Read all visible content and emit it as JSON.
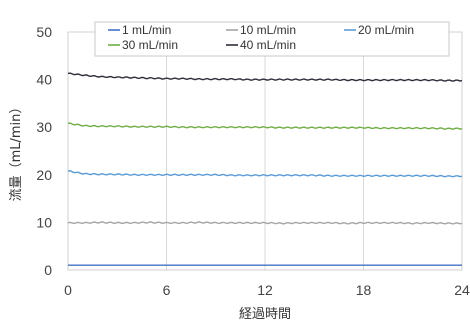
{
  "chart_data": {
    "type": "line",
    "xlabel": "経過時間",
    "ylabel": "流量（mL/min）",
    "xlim": [
      0,
      24
    ],
    "ylim": [
      0,
      50
    ],
    "x_ticks": [
      0,
      6,
      12,
      18,
      24
    ],
    "y_ticks": [
      0,
      10,
      20,
      30,
      40,
      50
    ],
    "grid": "vertical",
    "legend_position": "top",
    "x": [
      0,
      1,
      2,
      3,
      4,
      5,
      6,
      7,
      8,
      9,
      10,
      11,
      12,
      13,
      14,
      15,
      16,
      17,
      18,
      19,
      20,
      21,
      22,
      23,
      24
    ],
    "series": [
      {
        "name": "1 mL/min",
        "color": "#4472c4",
        "values": [
          1.0,
          1.0,
          1.0,
          1.0,
          1.0,
          1.0,
          1.0,
          1.0,
          1.0,
          1.0,
          1.0,
          1.0,
          1.0,
          1.0,
          1.0,
          1.0,
          1.0,
          1.0,
          1.0,
          1.0,
          1.0,
          1.0,
          1.0,
          1.0,
          1.0
        ]
      },
      {
        "name": "10 mL/min",
        "color": "#a5a5a5",
        "values": [
          9.9,
          9.9,
          10.0,
          9.9,
          9.9,
          10.0,
          9.9,
          9.9,
          10.0,
          9.9,
          9.9,
          9.9,
          9.9,
          9.8,
          9.9,
          9.9,
          9.9,
          9.8,
          9.9,
          9.9,
          9.9,
          9.8,
          9.9,
          9.8,
          9.8
        ]
      },
      {
        "name": "20 mL/min",
        "color": "#5b9bd5",
        "values": [
          20.8,
          20.2,
          20.1,
          20.1,
          20.0,
          20.0,
          20.0,
          20.0,
          20.0,
          20.0,
          19.9,
          19.9,
          19.9,
          19.9,
          19.9,
          19.9,
          19.8,
          19.8,
          19.8,
          19.8,
          19.8,
          19.8,
          19.8,
          19.7,
          19.7
        ]
      },
      {
        "name": "30 mL/min",
        "color": "#70ad47",
        "values": [
          30.8,
          30.3,
          30.2,
          30.2,
          30.1,
          30.1,
          30.1,
          30.0,
          30.0,
          30.0,
          30.0,
          30.0,
          30.0,
          29.9,
          29.9,
          29.9,
          29.9,
          29.9,
          29.9,
          29.8,
          29.8,
          29.8,
          29.8,
          29.7,
          29.7
        ]
      },
      {
        "name": "40 mL/min",
        "color": "#2e2e3a",
        "values": [
          41.3,
          40.9,
          40.6,
          40.5,
          40.4,
          40.3,
          40.2,
          40.2,
          40.1,
          40.1,
          40.1,
          40.0,
          40.0,
          40.0,
          40.0,
          40.0,
          40.0,
          39.9,
          39.9,
          39.9,
          39.9,
          39.9,
          39.9,
          39.8,
          39.8
        ]
      }
    ]
  }
}
